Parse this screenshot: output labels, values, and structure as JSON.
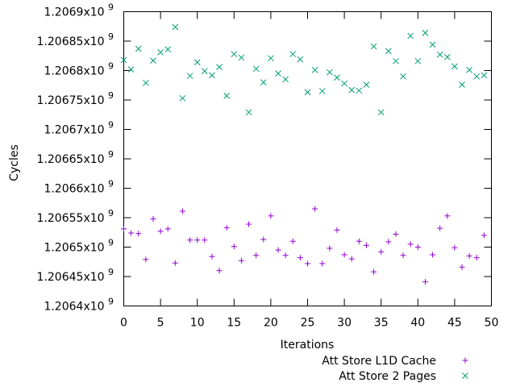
{
  "chart_data": {
    "type": "scatter",
    "title": "",
    "xlabel": "Iterations",
    "ylabel": "Cycles",
    "xlim": [
      0,
      50
    ],
    "ylim": [
      1206400000,
      1206900000
    ],
    "grid": false,
    "legend_position": "bottom-right",
    "x_ticks": [
      {
        "value": 0,
        "label": "0"
      },
      {
        "value": 5,
        "label": "5"
      },
      {
        "value": 10,
        "label": "10"
      },
      {
        "value": 15,
        "label": "15"
      },
      {
        "value": 20,
        "label": "20"
      },
      {
        "value": 25,
        "label": "25"
      },
      {
        "value": 30,
        "label": "30"
      },
      {
        "value": 35,
        "label": "35"
      },
      {
        "value": 40,
        "label": "40"
      },
      {
        "value": 45,
        "label": "45"
      },
      {
        "value": 50,
        "label": "50"
      }
    ],
    "y_ticks": [
      {
        "value": 1206400000,
        "label": "1.2064x10",
        "exp": "9"
      },
      {
        "value": 1206450000,
        "label": "1.20645x10",
        "exp": "9"
      },
      {
        "value": 1206500000,
        "label": "1.2065x10",
        "exp": "9"
      },
      {
        "value": 1206550000,
        "label": "1.20655x10",
        "exp": "9"
      },
      {
        "value": 1206600000,
        "label": "1.2066x10",
        "exp": "9"
      },
      {
        "value": 1206650000,
        "label": "1.20665x10",
        "exp": "9"
      },
      {
        "value": 1206700000,
        "label": "1.2067x10",
        "exp": "9"
      },
      {
        "value": 1206750000,
        "label": "1.20675x10",
        "exp": "9"
      },
      {
        "value": 1206800000,
        "label": "1.2068x10",
        "exp": "9"
      },
      {
        "value": 1206850000,
        "label": "1.20685x10",
        "exp": "9"
      },
      {
        "value": 1206900000,
        "label": "1.2069x10",
        "exp": "9"
      }
    ],
    "series": [
      {
        "name": "Att Store L1D Cache",
        "marker": "plus",
        "color": "#9400D3",
        "x": [
          0,
          1,
          2,
          3,
          4,
          5,
          6,
          7,
          8,
          9,
          10,
          11,
          12,
          13,
          14,
          15,
          16,
          17,
          18,
          19,
          20,
          21,
          22,
          23,
          24,
          25,
          26,
          27,
          28,
          29,
          30,
          31,
          32,
          33,
          34,
          35,
          36,
          37,
          38,
          39,
          40,
          41,
          42,
          43,
          44,
          45,
          46,
          47,
          48,
          49
        ],
        "y": [
          1206531000,
          1206524000,
          1206523000,
          1206479000,
          1206548000,
          1206527000,
          1206531000,
          1206473000,
          1206561000,
          1206512000,
          1206512000,
          1206512000,
          1206484000,
          1206460000,
          1206533000,
          1206501000,
          1206477000,
          1206539000,
          1206486000,
          1206513000,
          1206553000,
          1206495000,
          1206486000,
          1206510000,
          1206482000,
          1206472000,
          1206565000,
          1206472000,
          1206498000,
          1206529000,
          1206487000,
          1206480000,
          1206510000,
          1206503000,
          1206458000,
          1206492000,
          1206509000,
          1206522000,
          1206486000,
          1206505000,
          1206500000,
          1206441000,
          1206487000,
          1206532000,
          1206553000,
          1206499000,
          1206466000,
          1206485000,
          1206482000,
          1206520000
        ]
      },
      {
        "name": "Att Store 2 Pages",
        "marker": "cross",
        "color": "#009E73",
        "x": [
          0,
          1,
          2,
          3,
          4,
          5,
          6,
          7,
          8,
          9,
          10,
          11,
          12,
          13,
          14,
          15,
          16,
          17,
          18,
          19,
          20,
          21,
          22,
          23,
          24,
          25,
          26,
          27,
          28,
          29,
          30,
          31,
          32,
          33,
          34,
          35,
          36,
          37,
          38,
          39,
          40,
          41,
          42,
          43,
          44,
          45,
          46,
          47,
          48,
          49
        ],
        "y": [
          1206818000,
          1206802000,
          1206837000,
          1206779000,
          1206817000,
          1206831000,
          1206836000,
          1206874000,
          1206753000,
          1206791000,
          1206814000,
          1206799000,
          1206792000,
          1206806000,
          1206757000,
          1206828000,
          1206822000,
          1206729000,
          1206803000,
          1206780000,
          1206821000,
          1206795000,
          1206785000,
          1206828000,
          1206819000,
          1206763000,
          1206801000,
          1206765000,
          1206797000,
          1206788000,
          1206778000,
          1206767000,
          1206766000,
          1206776000,
          1206841000,
          1206729000,
          1206833000,
          1206816000,
          1206790000,
          1206859000,
          1206816000,
          1206864000,
          1206844000,
          1206827000,
          1206823000,
          1206807000,
          1206776000,
          1206801000,
          1206790000,
          1206792000
        ]
      }
    ]
  }
}
